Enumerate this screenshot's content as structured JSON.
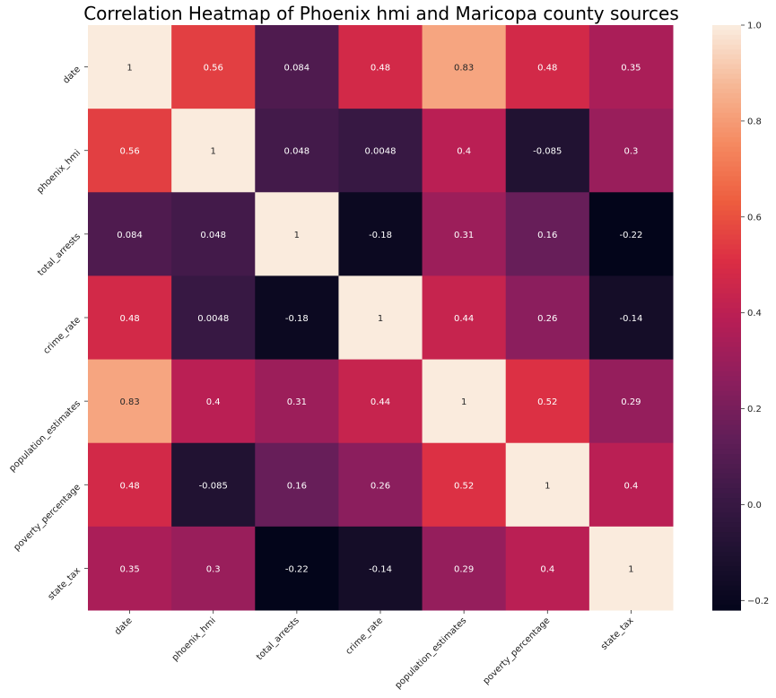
{
  "chart_data": {
    "type": "heatmap",
    "title": "Correlation Heatmap of Phoenix hmi and Maricopa county sources",
    "xlabel": "",
    "ylabel": "",
    "x_categories": [
      "date",
      "phoenix_hmi",
      "total_arrests",
      "crime_rate",
      "population_estimates",
      "poverty_percentage",
      "state_tax"
    ],
    "y_categories": [
      "date",
      "phoenix_hmi",
      "total_arrests",
      "crime_rate",
      "population_estimates",
      "poverty_percentage",
      "state_tax"
    ],
    "values": [
      [
        1,
        0.56,
        0.084,
        0.48,
        0.83,
        0.48,
        0.35
      ],
      [
        0.56,
        1,
        0.048,
        0.0048,
        0.4,
        -0.085,
        0.3
      ],
      [
        0.084,
        0.048,
        1,
        -0.18,
        0.31,
        0.16,
        -0.22
      ],
      [
        0.48,
        0.0048,
        -0.18,
        1,
        0.44,
        0.26,
        -0.14
      ],
      [
        0.83,
        0.4,
        0.31,
        0.44,
        1,
        0.52,
        0.29
      ],
      [
        0.48,
        -0.085,
        0.16,
        0.26,
        0.52,
        1,
        0.4
      ],
      [
        0.35,
        0.3,
        -0.22,
        -0.14,
        0.29,
        0.4,
        1
      ]
    ],
    "annotations": [
      [
        "1",
        "0.56",
        "0.084",
        "0.48",
        "0.83",
        "0.48",
        "0.35"
      ],
      [
        "0.56",
        "1",
        "0.048",
        "0.0048",
        "0.4",
        "-0.085",
        "0.3"
      ],
      [
        "0.084",
        "0.048",
        "1",
        "-0.18",
        "0.31",
        "0.16",
        "-0.22"
      ],
      [
        "0.48",
        "0.0048",
        "-0.18",
        "1",
        "0.44",
        "0.26",
        "-0.14"
      ],
      [
        "0.83",
        "0.4",
        "0.31",
        "0.44",
        "1",
        "0.52",
        "0.29"
      ],
      [
        "0.48",
        "-0.085",
        "0.16",
        "0.26",
        "0.52",
        "1",
        "0.4"
      ],
      [
        "0.35",
        "0.3",
        "-0.22",
        "-0.14",
        "0.29",
        "0.4",
        "1"
      ]
    ],
    "colorbar": {
      "range": [
        -0.22,
        1.0
      ],
      "ticks": [
        -0.2,
        0.0,
        0.2,
        0.4,
        0.6,
        0.8,
        1.0
      ],
      "tick_labels": [
        "−0.2",
        "0.0",
        "0.2",
        "0.4",
        "0.6",
        "0.8",
        "1.0"
      ],
      "colormap": "rocket"
    },
    "grid": false,
    "legend": "colorbar-right"
  }
}
